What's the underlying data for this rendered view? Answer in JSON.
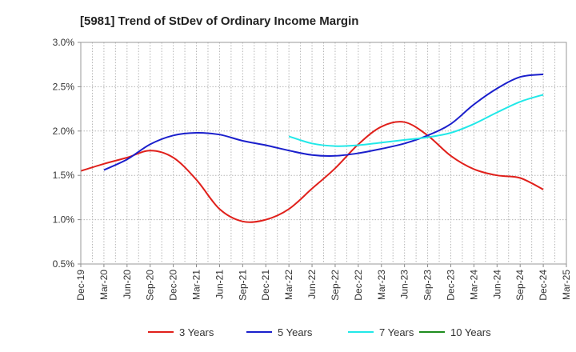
{
  "chart_data": {
    "type": "line",
    "title": "[5981]  Trend of StDev of Ordinary Income Margin",
    "xlabel": "",
    "ylabel": "",
    "x": [
      "Dec-19",
      "Mar-20",
      "Jun-20",
      "Sep-20",
      "Dec-20",
      "Mar-21",
      "Jun-21",
      "Sep-21",
      "Dec-21",
      "Mar-22",
      "Jun-22",
      "Sep-22",
      "Dec-22",
      "Mar-23",
      "Jun-23",
      "Sep-23",
      "Dec-23",
      "Mar-24",
      "Jun-24",
      "Sep-24",
      "Dec-24",
      "Mar-25"
    ],
    "y_ticks": [
      "0.5%",
      "1.0%",
      "1.5%",
      "2.0%",
      "2.5%",
      "3.0%"
    ],
    "ylim": [
      0.5,
      3.0
    ],
    "grid": true,
    "legend_position": "bottom",
    "series": [
      {
        "name": "3 Years",
        "color": "#e0201b",
        "values": [
          1.55,
          1.63,
          1.7,
          1.78,
          1.7,
          1.45,
          1.12,
          0.98,
          1.0,
          1.12,
          1.35,
          1.58,
          1.85,
          2.05,
          2.1,
          1.95,
          1.72,
          1.57,
          1.5,
          1.47,
          1.34,
          null
        ]
      },
      {
        "name": "5 Years",
        "color": "#1a1fcc",
        "values": [
          null,
          1.56,
          1.68,
          1.85,
          1.95,
          1.98,
          1.96,
          1.89,
          1.84,
          1.78,
          1.73,
          1.72,
          1.75,
          1.8,
          1.86,
          1.95,
          2.08,
          2.3,
          2.48,
          2.61,
          2.64,
          null
        ]
      },
      {
        "name": "7 Years",
        "color": "#21e8e8",
        "values": [
          null,
          null,
          null,
          null,
          null,
          null,
          null,
          null,
          null,
          1.94,
          1.86,
          1.83,
          1.84,
          1.87,
          1.9,
          1.93,
          1.98,
          2.08,
          2.21,
          2.33,
          2.41,
          null
        ]
      },
      {
        "name": "10 Years",
        "color": "#1e8c1e",
        "values": [
          null,
          null,
          null,
          null,
          null,
          null,
          null,
          null,
          null,
          null,
          null,
          null,
          null,
          null,
          null,
          null,
          null,
          null,
          null,
          null,
          null,
          null
        ]
      }
    ]
  }
}
